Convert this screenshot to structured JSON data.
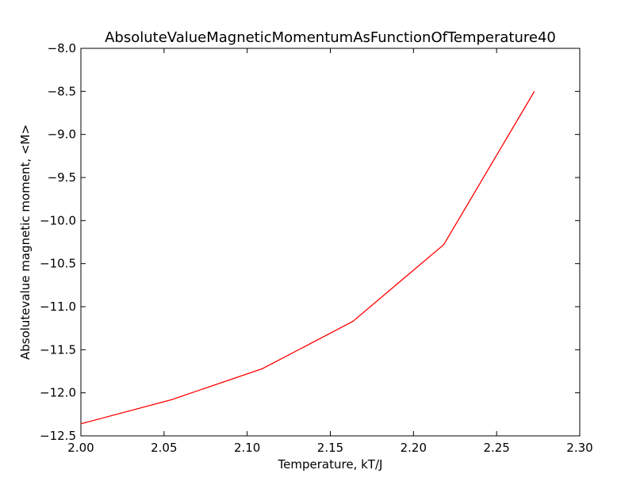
{
  "chart_data": {
    "type": "line",
    "title": "AbsoluteValueMagneticMomentumAsFunctionOfTemperature40",
    "xlabel": "Temperature, kT/J",
    "ylabel": "Absolutevalue magnetic moment, <M>",
    "xlim": [
      2.0,
      2.3
    ],
    "ylim": [
      -12.5,
      -8.0
    ],
    "x_ticks": [
      2.0,
      2.05,
      2.1,
      2.15,
      2.2,
      2.25,
      2.3
    ],
    "x_tick_labels": [
      "2.00",
      "2.05",
      "2.10",
      "2.15",
      "2.20",
      "2.25",
      "2.30"
    ],
    "y_ticks": [
      -8.0,
      -8.5,
      -9.0,
      -9.5,
      -10.0,
      -10.5,
      -11.0,
      -11.5,
      -12.0,
      -12.5
    ],
    "y_tick_labels": [
      "−8.0",
      "−8.5",
      "−9.0",
      "−9.5",
      "−10.0",
      "−10.5",
      "−11.0",
      "−11.5",
      "−12.0",
      "−12.5"
    ],
    "grid": false,
    "series": [
      {
        "color": "#ff0000",
        "x": [
          2.0,
          2.0545,
          2.1091,
          2.1636,
          2.2182,
          2.2727
        ],
        "y": [
          -12.36,
          -12.08,
          -11.72,
          -11.17,
          -10.28,
          -8.5
        ]
      }
    ]
  }
}
